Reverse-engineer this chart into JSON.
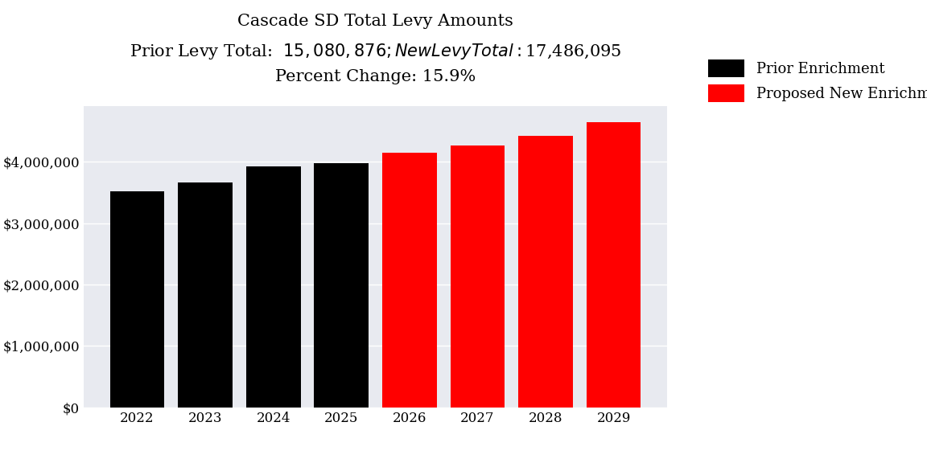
{
  "title_line1": "Cascade SD Total Levy Amounts",
  "title_line2": "Prior Levy Total:  $15,080,876; New Levy Total: $17,486,095",
  "title_line3": "Percent Change: 15.9%",
  "categories": [
    "2022",
    "2023",
    "2024",
    "2025",
    "2026",
    "2027",
    "2028",
    "2029"
  ],
  "values": [
    3520000,
    3660000,
    3930000,
    3970876,
    4150000,
    4270000,
    4420000,
    4646095
  ],
  "colors": [
    "#000000",
    "#000000",
    "#000000",
    "#000000",
    "#ff0000",
    "#ff0000",
    "#ff0000",
    "#ff0000"
  ],
  "legend_labels": [
    "Prior Enrichment",
    "Proposed New Enrichment"
  ],
  "legend_colors": [
    "#000000",
    "#ff0000"
  ],
  "ylim": [
    0,
    4900000
  ],
  "yticks": [
    0,
    1000000,
    2000000,
    3000000,
    4000000
  ],
  "ytick_labels": [
    "$0",
    "$1,000,000",
    "$2,000,000",
    "$3,000,000",
    "$4,000,000"
  ],
  "plot_bg_color": "#e8eaf0",
  "fig_bg_color": "#ffffff",
  "title_fontsize": 15,
  "tick_fontsize": 12,
  "legend_fontsize": 13
}
